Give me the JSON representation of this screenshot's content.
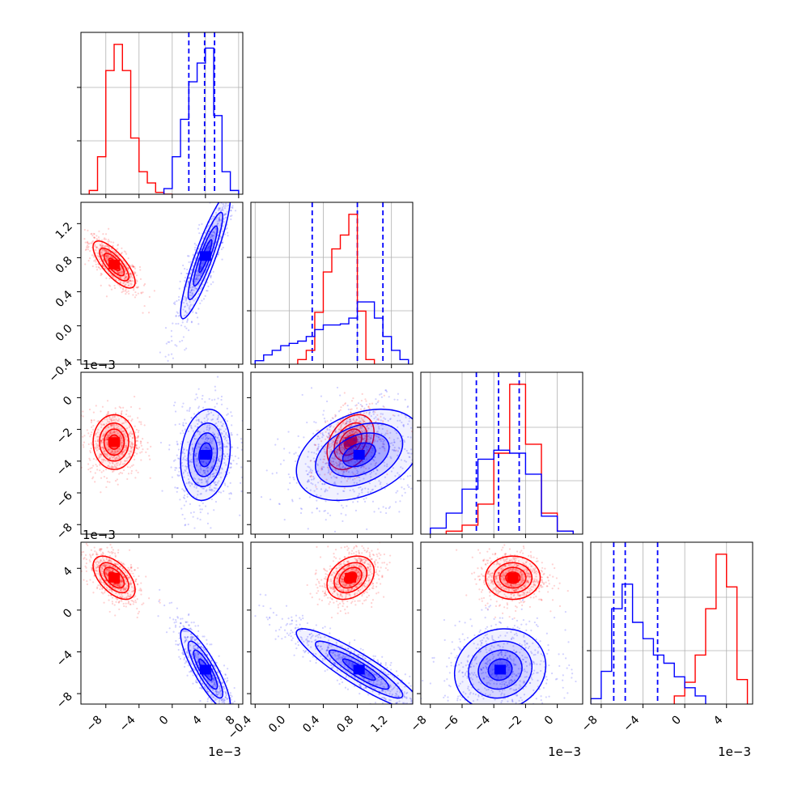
{
  "chart_data": {
    "type": "corner",
    "colors": {
      "red": "#ff0000",
      "blue": "#0000ff",
      "grid": "#b0b0b0",
      "axes": "#000000"
    },
    "params": [
      {
        "ticks": [
          -8,
          -4,
          0,
          4,
          8
        ],
        "tick_labels": [
          "−8",
          "−4",
          "0",
          "4",
          "8"
        ],
        "range": [
          -11,
          8.5
        ],
        "scale_label": "1e−3"
      },
      {
        "ticks": [
          -0.4,
          0.0,
          0.4,
          0.8,
          1.2
        ],
        "tick_labels": [
          "−0.4",
          "0.0",
          "0.4",
          "0.8",
          "1.2"
        ],
        "range": [
          -0.45,
          1.45
        ],
        "scale_label": "1e−3"
      },
      {
        "ticks": [
          -8,
          -6,
          -4,
          -2,
          0
        ],
        "tick_labels": [
          "−8",
          "−6",
          "−4",
          "−2",
          "0"
        ],
        "range": [
          -8.6,
          1.6
        ],
        "scale_label": "1e−3"
      },
      {
        "ticks": [
          -8,
          -4,
          0,
          4
        ],
        "tick_labels": [
          "−8",
          "−4",
          "0",
          "4"
        ],
        "range": [
          -9,
          6.5
        ],
        "scale_label": "1e−3"
      }
    ],
    "series": [
      {
        "color": "red",
        "means": [
          -7.0,
          0.72,
          -2.8,
          3.1
        ],
        "sigmas": [
          1.1,
          0.12,
          0.75,
          0.9
        ],
        "hist_peak_location": [
          -7.2,
          0.72,
          -2.4,
          3.2
        ]
      },
      {
        "color": "blue",
        "means": [
          4.0,
          0.82,
          -3.6,
          -5.7
        ],
        "sigmas": [
          1.3,
          0.32,
          1.25,
          1.7
        ],
        "quantiles": [
          [
            2.0,
            3.9,
            5.1
          ],
          [
            0.27,
            0.8,
            1.1
          ],
          [
            -5.1,
            -3.7,
            -2.4
          ],
          [
            -6.8,
            -5.7,
            -2.6
          ]
        ]
      }
    ],
    "histograms": [
      {
        "param": 0,
        "series": [
          {
            "color": "red",
            "bins_left": [
              -10,
              -9,
              -8,
              -7,
              -6,
              -5,
              -4,
              -3,
              -2,
              -1
            ],
            "counts": [
              2,
              20,
              66,
              80,
              66,
              30,
              12,
              6,
              1,
              0
            ]
          },
          {
            "color": "blue",
            "bins_left": [
              -1,
              0,
              1,
              2,
              3,
              4,
              5,
              6,
              7
            ],
            "counts": [
              3,
              20,
              40,
              60,
              70,
              78,
              42,
              12,
              2
            ]
          }
        ]
      },
      {
        "param": 1,
        "series": [
          {
            "color": "red",
            "bins_left": [
              0.1,
              0.2,
              0.3,
              0.4,
              0.5,
              0.6,
              0.7,
              0.8,
              0.9
            ],
            "counts": [
              4,
              12,
              45,
              80,
              100,
              112,
              130,
              46,
              4
            ]
          },
          {
            "color": "blue",
            "bins_left": [
              -0.4,
              -0.3,
              -0.2,
              -0.1,
              0.0,
              0.1,
              0.2,
              0.3,
              0.4,
              0.5,
              0.6,
              0.7,
              0.8,
              0.9,
              1.0,
              1.1,
              1.2,
              1.3
            ],
            "counts": [
              3,
              8,
              12,
              16,
              18,
              20,
              24,
              30,
              34,
              34,
              35,
              40,
              54,
              54,
              40,
              24,
              12,
              4
            ]
          }
        ]
      },
      {
        "param": 2,
        "series": [
          {
            "color": "red",
            "bins_left": [
              -7,
              -6,
              -5,
              -4,
              -3,
              -2,
              -1,
              0
            ],
            "counts": [
              2,
              6,
              20,
              54,
              100,
              60,
              14,
              2
            ]
          },
          {
            "color": "blue",
            "bins_left": [
              -8,
              -7,
              -6,
              -5,
              -4,
              -3,
              -2,
              -1,
              0
            ],
            "counts": [
              4,
              14,
              30,
              50,
              56,
              54,
              40,
              12,
              2
            ]
          }
        ]
      },
      {
        "param": 3,
        "series": [
          {
            "color": "red",
            "bins_left": [
              -1,
              0,
              1,
              2,
              3,
              4,
              5
            ],
            "counts": [
              6,
              16,
              36,
              70,
              110,
              86,
              18
            ]
          },
          {
            "color": "blue",
            "bins_left": [
              -9,
              -8,
              -7,
              -6,
              -5,
              -4,
              -3,
              -2,
              -1,
              0,
              1
            ],
            "counts": [
              4,
              24,
              70,
              88,
              60,
              48,
              36,
              30,
              20,
              12,
              6
            ]
          }
        ]
      }
    ]
  }
}
